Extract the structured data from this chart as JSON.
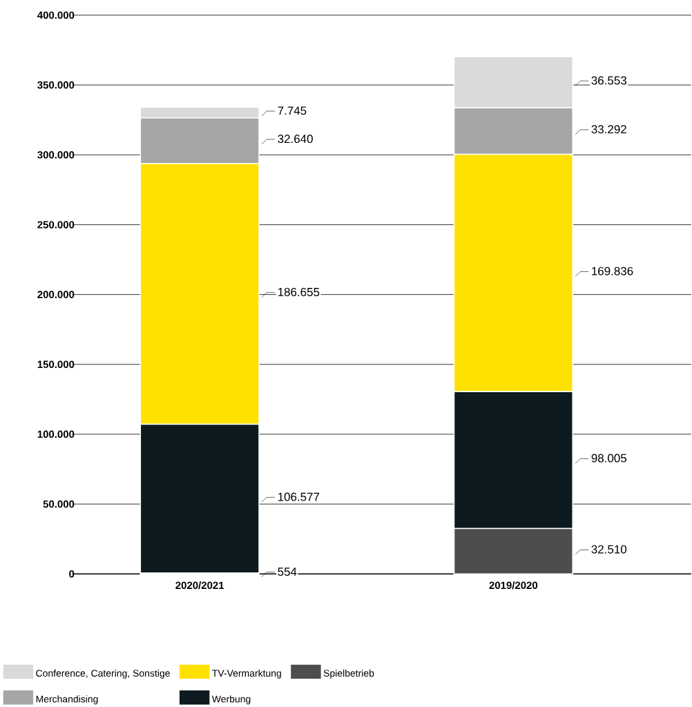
{
  "chart_data": {
    "type": "bar",
    "stacked": true,
    "categories": [
      "2020/2021",
      "2019/2020"
    ],
    "series": [
      {
        "name": "Spielbetrieb",
        "color": "#4d4d4d",
        "values": [
          554,
          32510
        ],
        "value_labels": [
          "554",
          "32.510"
        ]
      },
      {
        "name": "Werbung",
        "color": "#0d1a20",
        "values": [
          106577,
          98005
        ],
        "value_labels": [
          "106.577",
          "98.005"
        ]
      },
      {
        "name": "TV-Vermarktung",
        "color": "#ffe100",
        "values": [
          186655,
          169836
        ],
        "value_labels": [
          "186.655",
          "169.836"
        ]
      },
      {
        "name": "Merchandising",
        "color": "#a6a6a6",
        "values": [
          32640,
          33292
        ],
        "value_labels": [
          "32.640",
          "33.292"
        ]
      },
      {
        "name": "Conference, Catering, Sonstige",
        "color": "#d9d9d9",
        "values": [
          7745,
          36553
        ],
        "value_labels": [
          "7.745",
          "36.553"
        ]
      }
    ],
    "ylim": [
      0,
      400000
    ],
    "yticks": [
      {
        "value": 0,
        "label": "0"
      },
      {
        "value": 50000,
        "label": "50.000"
      },
      {
        "value": 100000,
        "label": "100.000"
      },
      {
        "value": 150000,
        "label": "150.000"
      },
      {
        "value": 200000,
        "label": "200.000"
      },
      {
        "value": 250000,
        "label": "250.000"
      },
      {
        "value": 300000,
        "label": "300.000"
      },
      {
        "value": 350000,
        "label": "350.000"
      },
      {
        "value": 400000,
        "label": "400.000"
      }
    ],
    "grid": "y",
    "legend": "bottom"
  }
}
